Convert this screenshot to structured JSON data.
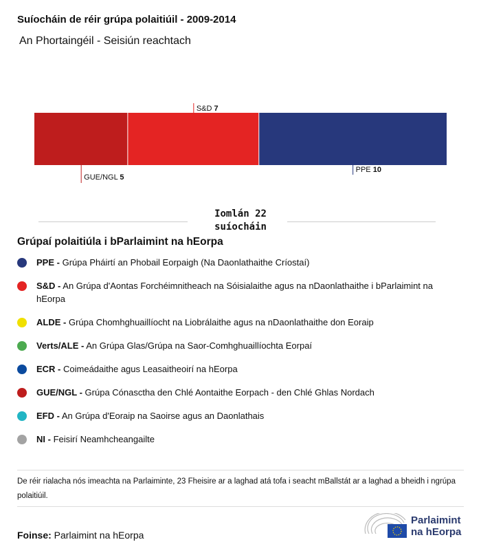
{
  "title": "Suíocháin de réir grúpa polaitiúil - 2009-2014",
  "subtitle": "An Phortaingéil - Seisiún reachtach",
  "chart_data": {
    "type": "bar",
    "orientation": "stacked-horizontal",
    "categories": [
      "GUE/NGL",
      "S&D",
      "PPE"
    ],
    "values": [
      5,
      7,
      10
    ],
    "colors": [
      "#be1d1d",
      "#e42423",
      "#27387c"
    ],
    "total": 22
  },
  "total_label": [
    "Iomlán 22",
    "suíocháin"
  ],
  "legend": {
    "title": "Grúpaí polaitiúla i bParlaimint na hEorpa",
    "items": [
      {
        "abbr": "PPE -",
        "name": " Grúpa Pháirtí an Phobail Eorpaigh (Na Daonlathaithe Críostaí)",
        "color": "#27387c"
      },
      {
        "abbr": "S&D -",
        "name": " An Grúpa d'Aontas Forchéimnitheach na Sóisialaithe agus na nDaonlathaithe i bParlaimint na hEorpa",
        "color": "#e42423"
      },
      {
        "abbr": "ALDE -",
        "name": " Grúpa Chomhghuaillíocht na Liobrálaithe agus na nDaonlathaithe don Eoraip",
        "color": "#f0e000"
      },
      {
        "abbr": "Verts/ALE -",
        "name": " An Grúpa Glas/Grúpa na Saor-Comhghuaillíochta Eorpaí",
        "color": "#4caa50"
      },
      {
        "abbr": "ECR -",
        "name": " Coimeádaithe agus Leasaitheoirí na hEorpa",
        "color": "#0b4a9e"
      },
      {
        "abbr": "GUE/NGL -",
        "name": " Grúpa Cónasctha den Chlé Aontaithe Eorpach - den Chlé Ghlas Nordach",
        "color": "#be1d1d"
      },
      {
        "abbr": "EFD -",
        "name": " An Grúpa d'Eoraip na Saoirse agus an Daonlathais",
        "color": "#22b5c4"
      },
      {
        "abbr": "NI -",
        "name": " Feisirí Neamhcheangailte",
        "color": "#a3a3a3"
      }
    ]
  },
  "note": "De réir rialacha nós imeachta na Parlaiminte, 23 Fheisire ar a laghad atá tofa i seacht mBallstát ar a laghad a bheidh i ngrúpa polaitiúil.",
  "source": {
    "label": "Foinse:",
    "value": " Parlaimint na hEorpa"
  },
  "logo": {
    "line1": "Parlaimint",
    "line2": "na hEorpa"
  }
}
